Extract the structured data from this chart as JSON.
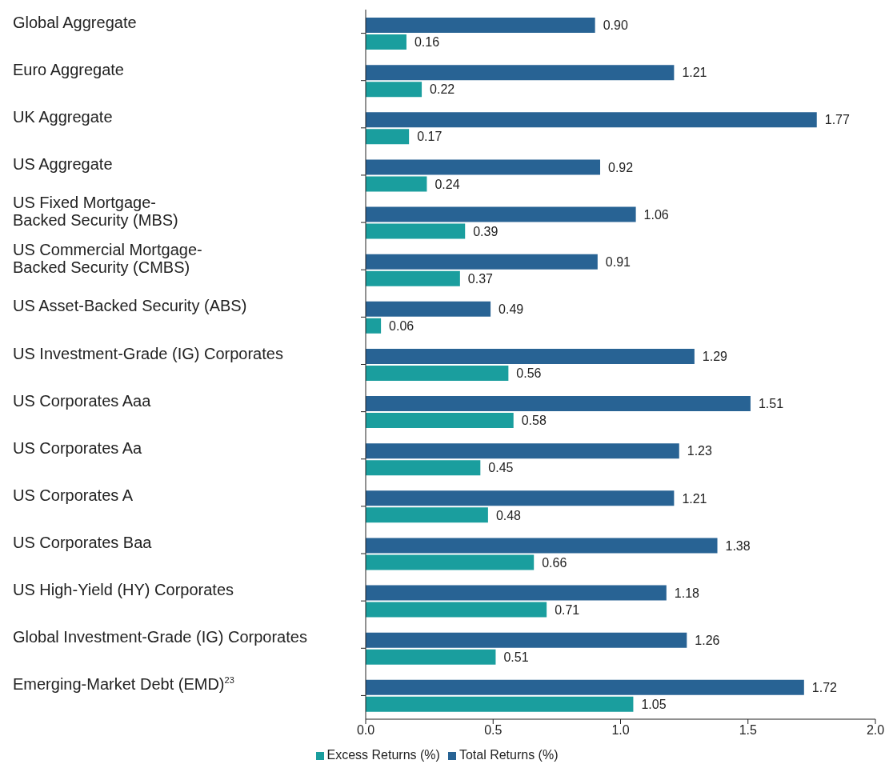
{
  "chart_data": {
    "type": "bar",
    "orientation": "horizontal",
    "categories": [
      "Global Aggregate",
      "Euro Aggregate",
      "UK Aggregate",
      "US Aggregate",
      "US Fixed Mortgage-\nBacked Security (MBS)",
      "US Commercial Mortgage-\nBacked Security (CMBS)",
      "US Asset-Backed Security (ABS)",
      "US Investment-Grade (IG) Corporates",
      "US Corporates Aaa",
      "US Corporates Aa",
      "US Corporates A",
      "US Corporates Baa",
      "US High-Yield (HY) Corporates",
      "Global Investment-Grade (IG) Corporates",
      "Emerging-Market Debt (EMD)$^{23}$"
    ],
    "series": [
      {
        "name": "Total Returns (%)",
        "color": "#286394",
        "values": [
          0.9,
          1.21,
          1.77,
          0.92,
          1.06,
          0.91,
          0.49,
          1.29,
          1.51,
          1.23,
          1.21,
          1.38,
          1.18,
          1.26,
          1.72
        ],
        "value_labels": [
          "0.90",
          "1.21",
          "1.77",
          "0.92",
          "1.06",
          "0.91",
          "0.49",
          "1.29",
          "1.51",
          "1.23",
          "1.21",
          "1.38",
          "1.18",
          "1.26",
          "1.72"
        ]
      },
      {
        "name": "Excess Returns (%)",
        "color": "#1a9e9e",
        "values": [
          0.16,
          0.22,
          0.17,
          0.24,
          0.39,
          0.37,
          0.06,
          0.56,
          0.58,
          0.45,
          0.48,
          0.66,
          0.71,
          0.51,
          1.05
        ],
        "value_labels": [
          "0.16",
          "0.22",
          "0.17",
          "0.24",
          "0.39",
          "0.37",
          "0.06",
          "0.56",
          "0.58",
          "0.45",
          "0.48",
          "0.66",
          "0.71",
          "0.51",
          "1.05"
        ]
      }
    ],
    "xlim": [
      0,
      2
    ],
    "xticks": [
      {
        "value": 0,
        "label": "0.0"
      },
      0.5,
      {
        "value": 1,
        "label": "1.0"
      },
      1.5,
      {
        "value": 2,
        "label": "2.0"
      }
    ],
    "grid": false,
    "legend": "bottom"
  }
}
